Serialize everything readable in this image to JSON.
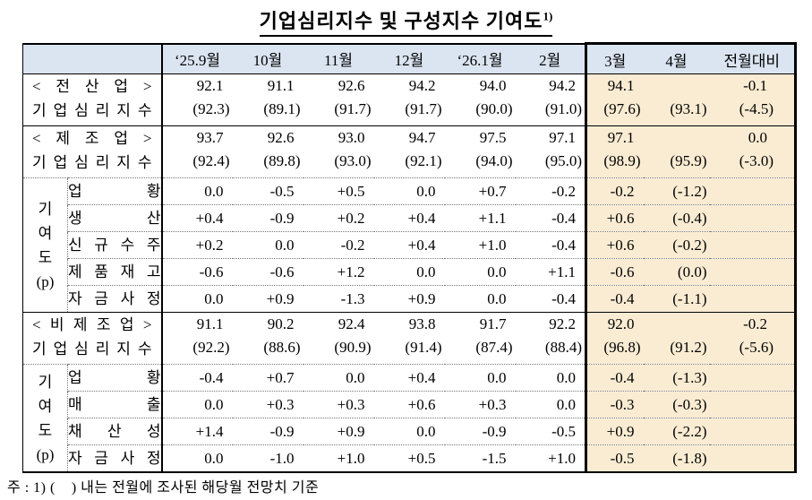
{
  "title": {
    "text": "기업심리지수 및 구성지수 기여도",
    "superscript": "1)"
  },
  "footnote": "주 : 1) (    ) 내는 전월에 조사된 해당월 전망치 기준",
  "colors": {
    "header_bg": "#dbe5f1",
    "highlight_bg": "#faecd3",
    "border": "#000000",
    "text": "#000000"
  },
  "table": {
    "column_headers": [
      "‘25.9월",
      "10월",
      "11월",
      "12월",
      "‘26.1월",
      "2월",
      "3월",
      "4월",
      "전월대비"
    ],
    "highlighted_columns": [
      "3월",
      "4월",
      "전월대비"
    ],
    "rows": [
      {
        "kind": "group",
        "label": [
          "< 전 산 업 >",
          "기 업 심 리 지 수"
        ],
        "main": [
          "92.1",
          "91.1",
          "92.6",
          "94.2",
          "94.0",
          "94.2",
          "94.1",
          "",
          "-0.1"
        ],
        "paren": [
          "(92.3)",
          "(89.1)",
          "(91.7)",
          "(91.7)",
          "(90.0)",
          "(91.0)",
          "(97.6)",
          "(93.1)",
          "(-4.5)"
        ]
      },
      {
        "kind": "group",
        "label": [
          "< 제 조 업 >",
          "기 업 심 리 지 수"
        ],
        "main": [
          "93.7",
          "92.6",
          "93.0",
          "94.7",
          "97.5",
          "97.1",
          "97.1",
          "",
          "0.0"
        ],
        "paren": [
          "(92.4)",
          "(89.8)",
          "(93.0)",
          "(92.1)",
          "(94.0)",
          "(95.0)",
          "(98.9)",
          "(95.9)",
          "(-3.0)"
        ]
      },
      {
        "kind": "sub",
        "group_start": {
          "label_chars": [
            "기",
            "여",
            "도",
            "(p)"
          ],
          "span": 5
        },
        "label": "업 황",
        "values": [
          "0.0",
          "-0.5",
          "+0.5",
          "0.0",
          "+0.7",
          "-0.2",
          "-0.2",
          "(-1.2)",
          ""
        ]
      },
      {
        "kind": "sub",
        "label": "생 산",
        "values": [
          "+0.4",
          "-0.9",
          "+0.2",
          "+0.4",
          "+1.1",
          "-0.4",
          "+0.6",
          "(-0.4)",
          ""
        ]
      },
      {
        "kind": "sub",
        "label": "신 규 수 주",
        "values": [
          "+0.2",
          "0.0",
          "-0.2",
          "+0.4",
          "+1.0",
          "-0.4",
          "+0.6",
          "(-0.2)",
          ""
        ]
      },
      {
        "kind": "sub",
        "label": "제 품 재 고",
        "values": [
          "-0.6",
          "-0.6",
          "+1.2",
          "0.0",
          "0.0",
          "+1.1",
          "-0.6",
          "(0.0)",
          ""
        ]
      },
      {
        "kind": "sub",
        "label": "자 금 사 정",
        "values": [
          "0.0",
          "+0.9",
          "-1.3",
          "+0.9",
          "0.0",
          "-0.4",
          "-0.4",
          "(-1.1)",
          ""
        ]
      },
      {
        "kind": "group",
        "label": [
          "< 비 제 조 업 >",
          "기 업 심 리 지 수"
        ],
        "main": [
          "91.1",
          "90.2",
          "92.4",
          "93.8",
          "91.7",
          "92.2",
          "92.0",
          "",
          "-0.2"
        ],
        "paren": [
          "(92.2)",
          "(88.6)",
          "(90.9)",
          "(91.4)",
          "(87.4)",
          "(88.4)",
          "(96.8)",
          "(91.2)",
          "(-5.6)"
        ]
      },
      {
        "kind": "sub",
        "group_start": {
          "label_chars": [
            "기",
            "여",
            "도",
            "(p)"
          ],
          "span": 4
        },
        "label": "업 황",
        "values": [
          "-0.4",
          "+0.7",
          "0.0",
          "+0.4",
          "0.0",
          "0.0",
          "-0.4",
          "(-1.3)",
          ""
        ]
      },
      {
        "kind": "sub",
        "label": "매 출",
        "values": [
          "0.0",
          "+0.3",
          "+0.3",
          "+0.6",
          "+0.3",
          "0.0",
          "-0.3",
          "(-0.3)",
          ""
        ]
      },
      {
        "kind": "sub",
        "label": "채 산 성",
        "values": [
          "+1.4",
          "-0.9",
          "+0.9",
          "0.0",
          "-0.9",
          "-0.5",
          "+0.9",
          "(-2.2)",
          ""
        ]
      },
      {
        "kind": "sub",
        "label": "자 금 사 정",
        "values": [
          "0.0",
          "-1.0",
          "+1.0",
          "+0.5",
          "-1.5",
          "+1.0",
          "-0.5",
          "(-1.8)",
          ""
        ]
      }
    ]
  }
}
